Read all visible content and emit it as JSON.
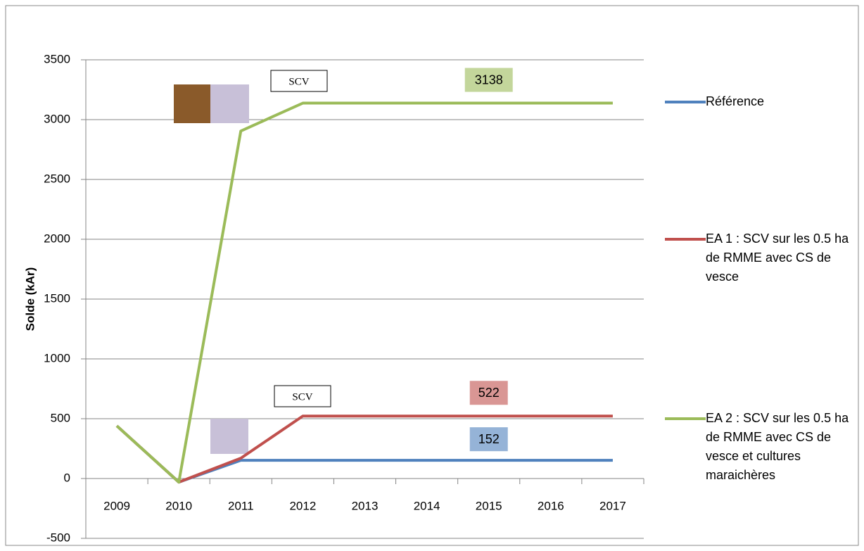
{
  "chart_data": {
    "type": "line",
    "y_label": "Solde (kAr)",
    "categories": [
      "2009",
      "2010",
      "2011",
      "2012",
      "2013",
      "2014",
      "2015",
      "2016",
      "2017"
    ],
    "series": [
      {
        "name": "Référence",
        "color": "#4f81bd",
        "label_color": "#95b3d7",
        "values": [
          440,
          -30,
          152,
          152,
          152,
          152,
          152,
          152,
          152
        ]
      },
      {
        "name": "EA 1 : SCV sur les 0.5 ha de RMME avec CS de vesce",
        "color": "#c0504d",
        "label_color": "#d99694",
        "values": [
          440,
          -30,
          170,
          522,
          522,
          522,
          522,
          522,
          522
        ]
      },
      {
        "name": "EA 2 : SCV sur les 0.5 ha de RMME avec CS de vesce et cultures maraichères",
        "color": "#9bbb59",
        "label_color": "#c3d69b",
        "values": [
          440,
          -30,
          2905,
          3138,
          3138,
          3138,
          3138,
          3138,
          3138
        ]
      }
    ],
    "annotations": [
      "SCV",
      "SCV"
    ],
    "ylim": [
      -500,
      3500
    ],
    "yticks": [
      -500,
      0,
      500,
      1000,
      1500,
      2000,
      2500,
      3000,
      3500
    ],
    "grid": true
  }
}
